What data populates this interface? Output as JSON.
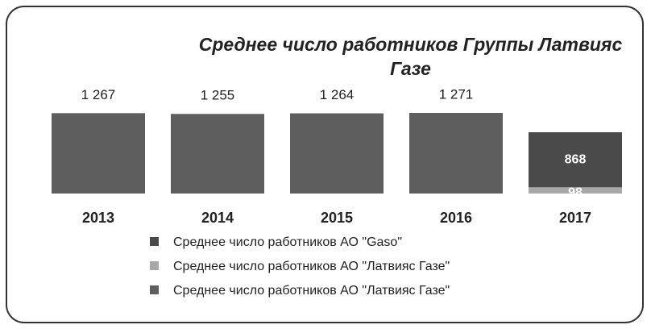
{
  "chart_data": {
    "type": "bar",
    "stacked": true,
    "title": "Среднее число работников Группы Латвияс Газе",
    "categories": [
      "2013",
      "2014",
      "2015",
      "2016",
      "2017"
    ],
    "series": [
      {
        "name": "Среднее число работников АО \"Gaso\"",
        "color": "#4a4a4a",
        "values": [
          null,
          null,
          null,
          null,
          868
        ],
        "value_labels": [
          null,
          null,
          null,
          null,
          "868"
        ]
      },
      {
        "name": "Среднее число работников АО \"Латвияс Газе\"",
        "color": "#a8a8a8",
        "values": [
          null,
          null,
          null,
          null,
          98
        ],
        "value_labels": [
          null,
          null,
          null,
          null,
          "98"
        ]
      },
      {
        "name": "Среднее число работников АО \"Латвияс Газе\"",
        "color": "#5e5e5e",
        "values": [
          1267,
          1255,
          1264,
          1271,
          null
        ],
        "value_labels": [
          "1 267",
          "1 255",
          "1 264",
          "1 271",
          null
        ]
      }
    ]
  }
}
